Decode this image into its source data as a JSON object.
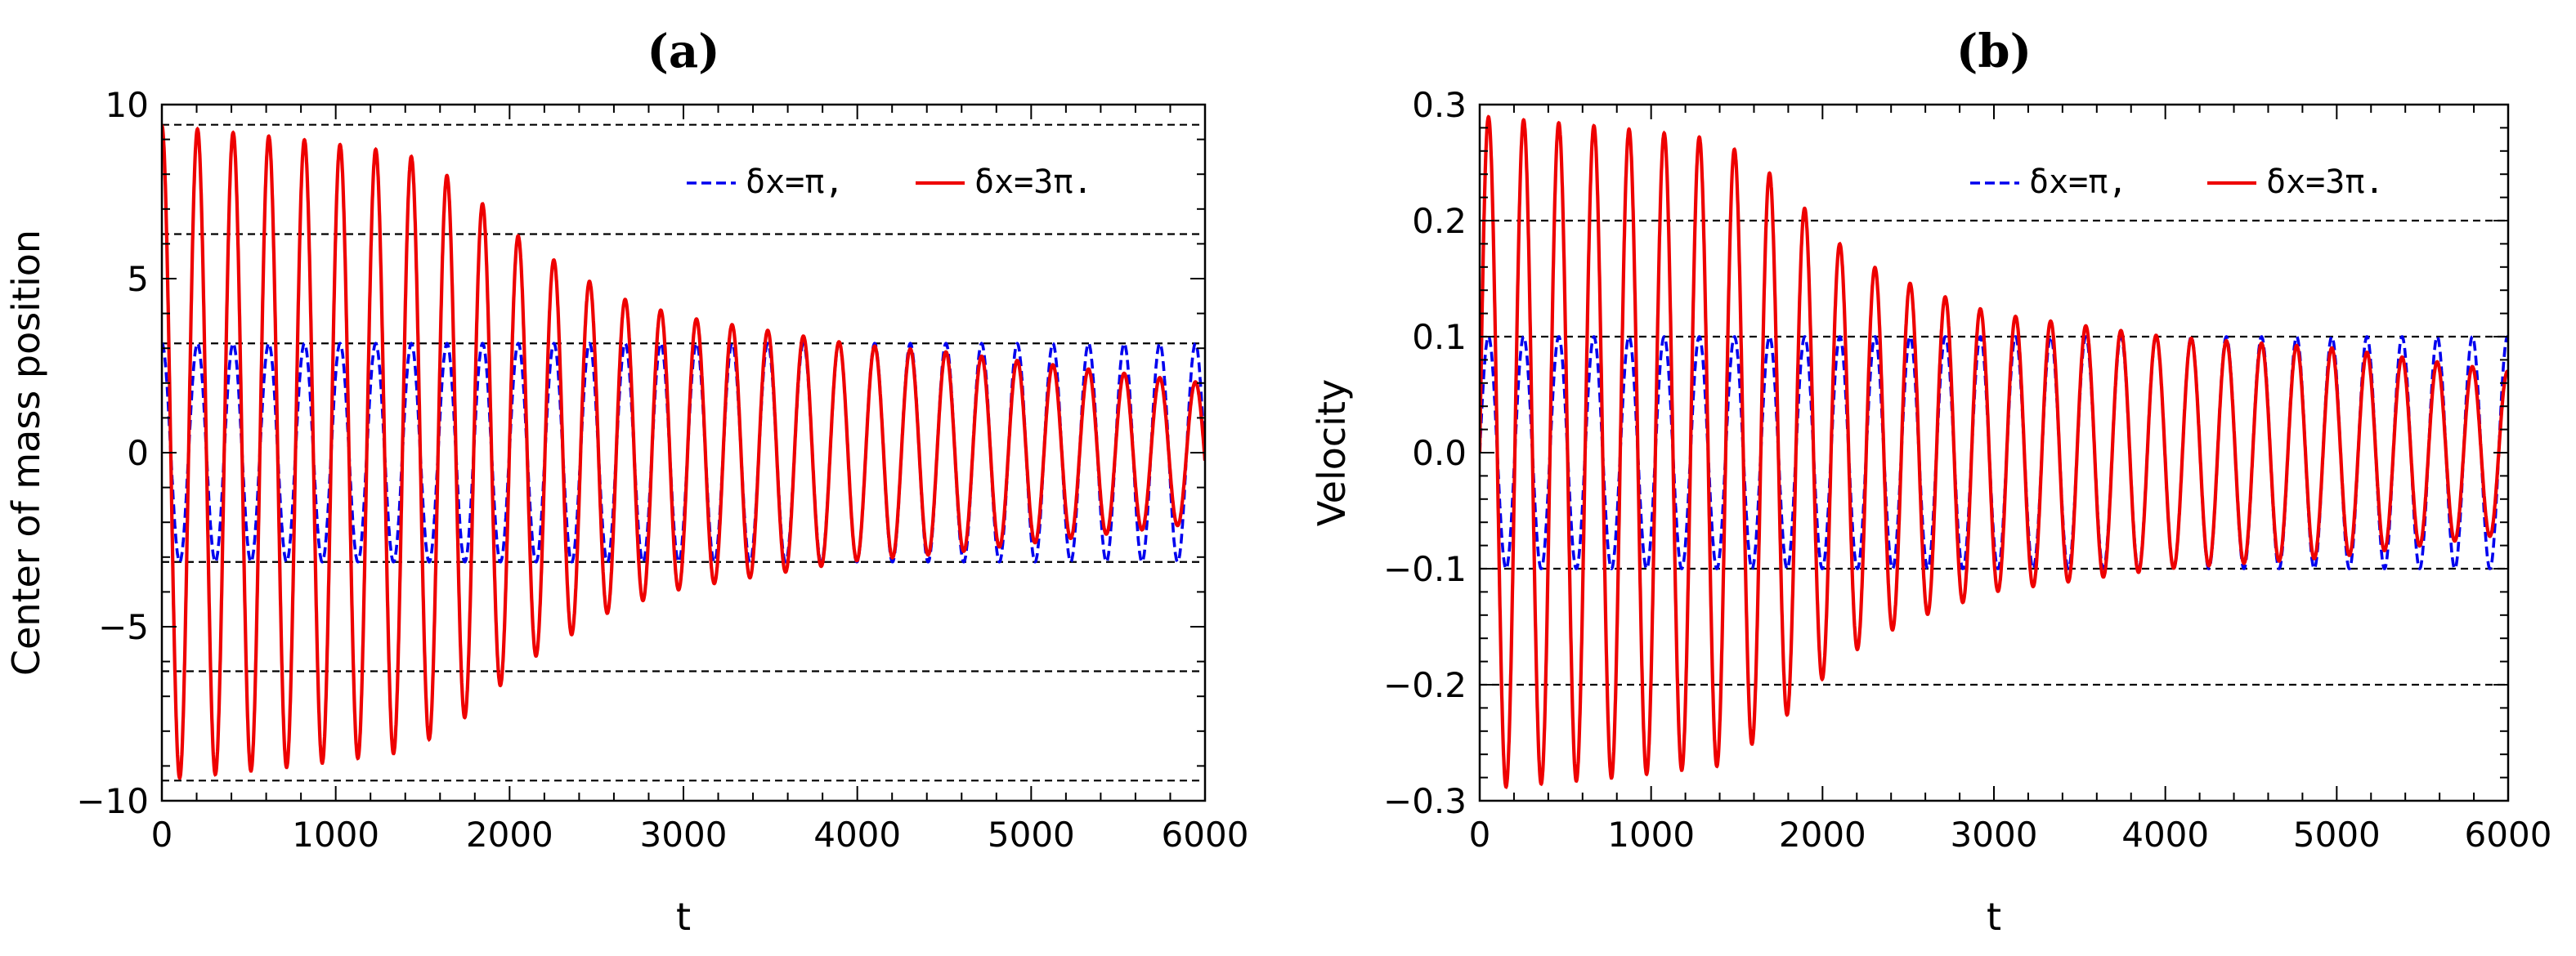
{
  "chart_data": [
    {
      "type": "line",
      "panel_label": "(a)",
      "xlabel": "t",
      "ylabel": "Center of mass position",
      "xlim": [
        0,
        6000
      ],
      "ylim": [
        -10,
        10
      ],
      "xticks": [
        0,
        1000,
        2000,
        3000,
        4000,
        5000,
        6000
      ],
      "yticks": [
        -10,
        -5,
        0,
        5,
        10
      ],
      "xtick_labels": [
        "0",
        "1000",
        "2000",
        "3000",
        "4000",
        "5000",
        "6000"
      ],
      "ytick_labels": [
        "−10",
        "−5",
        "0",
        "5",
        "10"
      ],
      "reference_lines": [
        9.42,
        6.28,
        3.14,
        -3.14,
        -6.28,
        -9.42
      ],
      "legend": {
        "position": "top-right",
        "entries": [
          "δx=π,",
          "δx=3π."
        ]
      },
      "series": [
        {
          "name": "δx=π,",
          "color": "#0000ee",
          "style": "dashed",
          "model": "cosine",
          "period": 205,
          "phase_start": 0,
          "amplitude": [
            [
              0,
              3.14
            ],
            [
              6000,
              3.14
            ]
          ]
        },
        {
          "name": "δx=3π.",
          "color": "#ee0000",
          "style": "solid",
          "model": "cosine",
          "period": 205,
          "phase_start": 0,
          "amplitude": [
            [
              0,
              9.4
            ],
            [
              800,
              9.0
            ],
            [
              1400,
              8.6
            ],
            [
              1700,
              7.8
            ],
            [
              1900,
              6.9
            ],
            [
              2100,
              6.0
            ],
            [
              2300,
              5.4
            ],
            [
              2600,
              4.5
            ],
            [
              3000,
              3.9
            ],
            [
              3500,
              3.5
            ],
            [
              4000,
              3.1
            ],
            [
              4500,
              2.9
            ],
            [
              5000,
              2.6
            ],
            [
              5500,
              2.3
            ],
            [
              6000,
              2.0
            ]
          ]
        }
      ]
    },
    {
      "type": "line",
      "panel_label": "(b)",
      "xlabel": "t",
      "ylabel": "Velocity",
      "xlim": [
        0,
        6000
      ],
      "ylim": [
        -0.3,
        0.3
      ],
      "xticks": [
        0,
        1000,
        2000,
        3000,
        4000,
        5000,
        6000
      ],
      "yticks": [
        -0.3,
        -0.2,
        -0.1,
        0.0,
        0.1,
        0.2,
        0.3
      ],
      "xtick_labels": [
        "0",
        "1000",
        "2000",
        "3000",
        "4000",
        "5000",
        "6000"
      ],
      "ytick_labels": [
        "−0.3",
        "−0.2",
        "−0.1",
        "0.0",
        "0.1",
        "0.2",
        "0.3"
      ],
      "reference_lines": [
        0.2,
        0.1,
        -0.1,
        -0.2
      ],
      "legend": {
        "position": "top-right",
        "entries": [
          "δx=π,",
          "δx=3π."
        ]
      },
      "series": [
        {
          "name": "δx=π,",
          "color": "#0000ee",
          "style": "dashed",
          "model": "sine",
          "period": 205,
          "phase_start": 0,
          "amplitude": [
            [
              0,
              0.1
            ],
            [
              6000,
              0.1
            ]
          ]
        },
        {
          "name": "δx=3π.",
          "color": "#ee0000",
          "style": "solid",
          "model": "sine",
          "period": 205,
          "phase_start": 0,
          "amplitude": [
            [
              0,
              0.29
            ],
            [
              800,
              0.28
            ],
            [
              1400,
              0.27
            ],
            [
              1700,
              0.24
            ],
            [
              1900,
              0.21
            ],
            [
              2100,
              0.18
            ],
            [
              2300,
              0.16
            ],
            [
              2600,
              0.14
            ],
            [
              3000,
              0.12
            ],
            [
              3500,
              0.11
            ],
            [
              4000,
              0.1
            ],
            [
              4500,
              0.095
            ],
            [
              5000,
              0.09
            ],
            [
              5500,
              0.08
            ],
            [
              6000,
              0.07
            ]
          ]
        }
      ]
    }
  ]
}
